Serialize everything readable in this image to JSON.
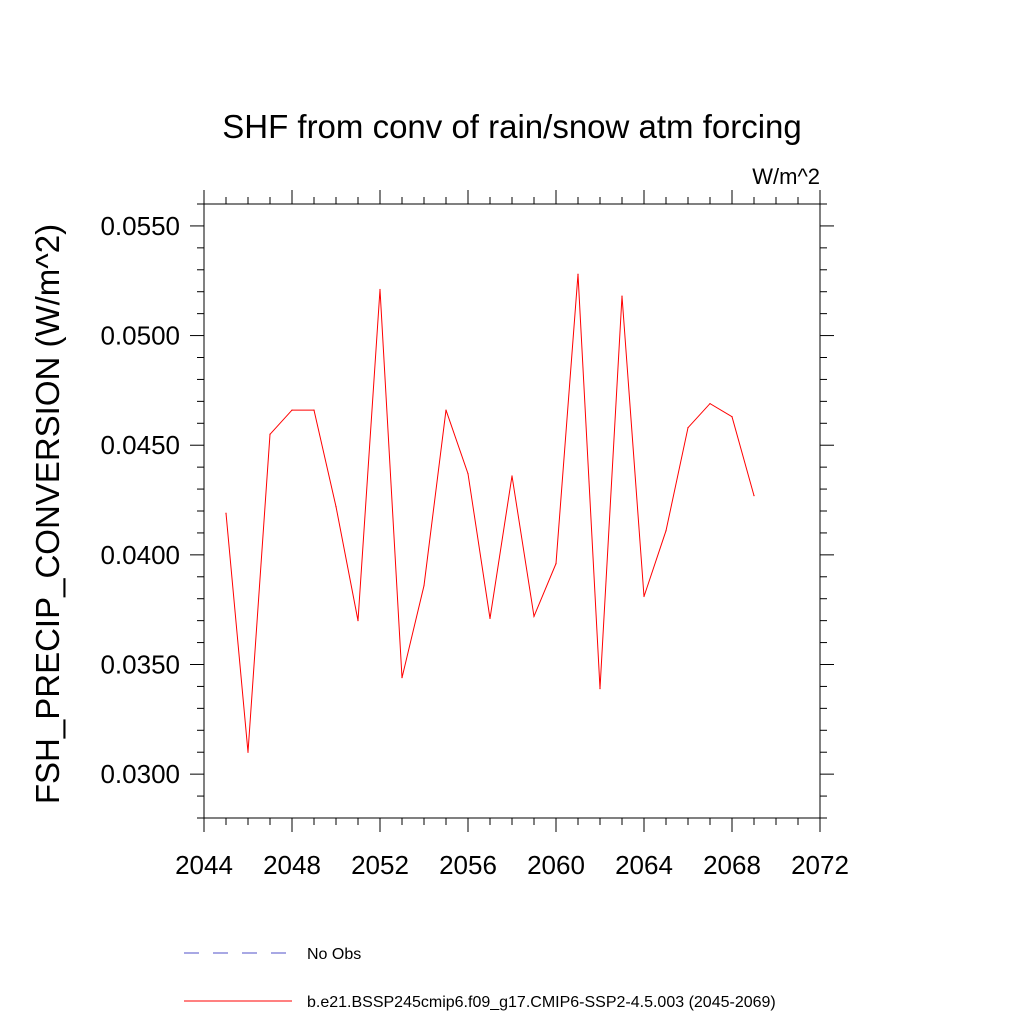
{
  "chart_data": {
    "type": "line",
    "title": "SHF from conv of rain/snow atm forcing",
    "units_label": "W/m^2",
    "ylabel": "FSH_PRECIP_CONVERSION  (W/m^2)",
    "xlabel": "",
    "xlim": [
      2044,
      2072
    ],
    "ylim": [
      0.028,
      0.056
    ],
    "x_ticks": [
      "2044",
      "2048",
      "2052",
      "2056",
      "2060",
      "2064",
      "2068",
      "2072"
    ],
    "y_ticks": [
      "0.0300",
      "0.0350",
      "0.0400",
      "0.0450",
      "0.0500",
      "0.0550"
    ],
    "legend_position": "bottom",
    "series": [
      {
        "name": "b.e21.BSSP245cmip6.f09_g17.CMIP6-SSP2-4.5.003 (2045-2069)",
        "color": "#ff0000",
        "style": "solid",
        "x": [
          2045,
          2046,
          2047,
          2048,
          2049,
          2050,
          2051,
          2052,
          2053,
          2054,
          2055,
          2056,
          2057,
          2058,
          2059,
          2060,
          2061,
          2062,
          2063,
          2064,
          2065,
          2066,
          2067,
          2068,
          2069
        ],
        "y": [
          0.0419,
          0.031,
          0.0455,
          0.0466,
          0.0466,
          0.0422,
          0.037,
          0.0521,
          0.0344,
          0.0386,
          0.0466,
          0.0437,
          0.0371,
          0.0436,
          0.0372,
          0.0396,
          0.0528,
          0.0339,
          0.0518,
          0.0381,
          0.0411,
          0.0458,
          0.0469,
          0.0463,
          0.0427
        ]
      }
    ],
    "legend": [
      {
        "label": "No Obs",
        "color": "#5050c8",
        "style": "dashed"
      },
      {
        "label": "b.e21.BSSP245cmip6.f09_g17.CMIP6-SSP2-4.5.003 (2045-2069)",
        "color": "#ff0000",
        "style": "solid"
      }
    ]
  }
}
